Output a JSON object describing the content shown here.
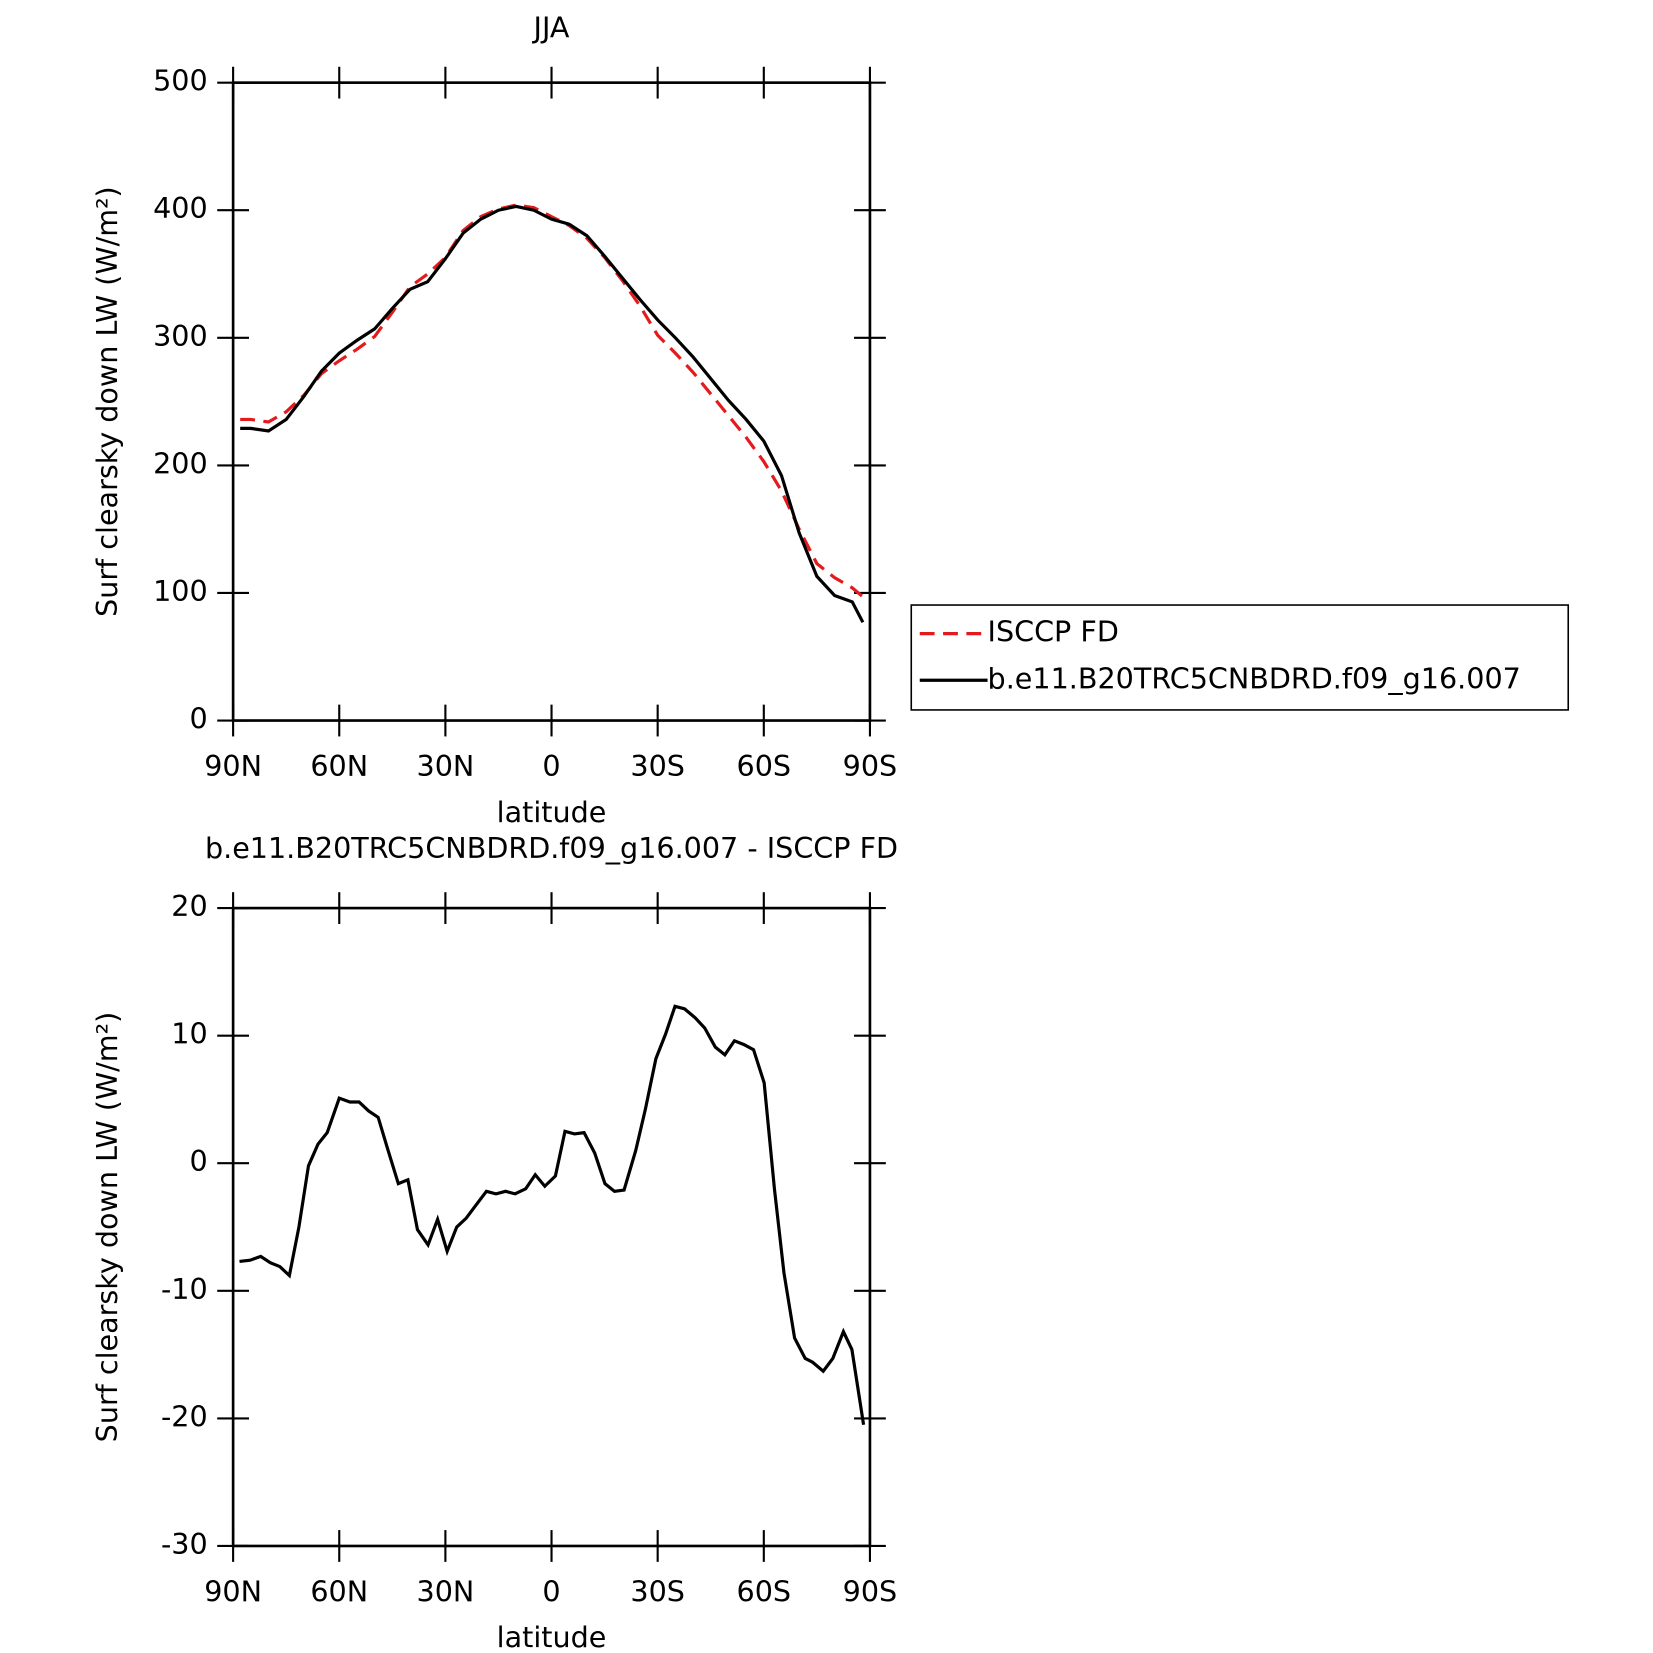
{
  "chart_data": [
    {
      "type": "line",
      "title": "JJA",
      "xlabel": "latitude",
      "ylabel": "Surf clearsky down LW (W/m²)",
      "xlim": [
        90,
        -90
      ],
      "xticks": [
        {
          "value": 90,
          "label": "90N"
        },
        {
          "value": 60,
          "label": "60N"
        },
        {
          "value": 30,
          "label": "30N"
        },
        0,
        {
          "value": -30,
          "label": "30S"
        },
        {
          "value": -60,
          "label": "60S"
        },
        {
          "value": -90,
          "label": "90S"
        }
      ],
      "ylim": [
        0,
        500
      ],
      "yticks": [
        0,
        100,
        200,
        300,
        400,
        500
      ],
      "legend": "right",
      "x": [
        88,
        85,
        80,
        75,
        70,
        65,
        60,
        55,
        50,
        45,
        40,
        35,
        30,
        25,
        20,
        15,
        10,
        5,
        0,
        -5,
        -10,
        -15,
        -20,
        -25,
        -30,
        -35,
        -40,
        -45,
        -50,
        -55,
        -60,
        -65,
        -70,
        -75,
        -80,
        -85,
        -88
      ],
      "series": [
        {
          "name": "ISCCP FD",
          "color": "#e41a1c",
          "dash": true,
          "values": [
            236,
            236,
            234,
            242,
            255,
            272,
            282,
            291,
            301,
            320,
            340,
            350,
            363,
            384,
            395,
            401,
            404,
            402,
            395,
            388,
            378,
            363,
            345,
            325,
            302,
            288,
            273,
            256,
            239,
            222,
            203,
            180,
            150,
            123,
            112,
            104,
            97
          ]
        },
        {
          "name": "b.e11.B20TRC5CNBDRD.f09_g16.007",
          "color": "#000000",
          "dash": false,
          "values": [
            229,
            229,
            227,
            236,
            254,
            274,
            288,
            298,
            307,
            323,
            338,
            344,
            362,
            382,
            393,
            400,
            403,
            400,
            393,
            389,
            380,
            364,
            347,
            330,
            314,
            300,
            285,
            268,
            251,
            236,
            219,
            192,
            147,
            113,
            98,
            93,
            77
          ]
        }
      ]
    },
    {
      "type": "line",
      "title": "b.e11.B20TRC5CNBDRD.f09_g16.007 - ISCCP FD",
      "xlabel": "latitude",
      "ylabel": "Surf clearsky down LW (W/m²)",
      "xlim": [
        90,
        -90
      ],
      "xticks": [
        {
          "value": 90,
          "label": "90N"
        },
        {
          "value": 60,
          "label": "60N"
        },
        {
          "value": 30,
          "label": "30N"
        },
        0,
        {
          "value": -30,
          "label": "30S"
        },
        {
          "value": -60,
          "label": "60S"
        },
        {
          "value": -90,
          "label": "90S"
        }
      ],
      "ylim": [
        -30,
        20
      ],
      "yticks": [
        -30,
        -20,
        -10,
        0,
        10,
        20
      ],
      "x": [
        88.2,
        85.2,
        82.2,
        79.5,
        76.8,
        74.1,
        71.4,
        68.7,
        66,
        63.4,
        60,
        57,
        54.4,
        51.7,
        49,
        46.3,
        43.3,
        40.6,
        37.9,
        34.9,
        32.2,
        29.5,
        26.8,
        24.1,
        21.4,
        18.4,
        15.7,
        13,
        10.3,
        7.3,
        4.6,
        1.9,
        -1.1,
        -3.8,
        -6.5,
        -9.2,
        -12.2,
        -15.1,
        -17.8,
        -20.5,
        -23.8,
        -26.5,
        -29.5,
        -32.2,
        -34.9,
        -37.6,
        -40.6,
        -43.3,
        -46.3,
        -49,
        -51.7,
        -54.4,
        -57.1,
        -60.1,
        -63,
        -65.7,
        -68.7,
        -71.7,
        -73.8,
        -76.8,
        -79.5,
        -82.5,
        -84.9,
        -88.2
      ],
      "series": [
        {
          "color": "#000000",
          "dash": false,
          "values": [
            -7.7,
            -7.6,
            -7.3,
            -7.8,
            -8.1,
            -8.8,
            -5,
            -0.2,
            1.5,
            2.4,
            5.1,
            4.8,
            4.8,
            4.1,
            3.6,
            1.1,
            -1.6,
            -1.3,
            -5.2,
            -6.4,
            -4.4,
            -6.9,
            -5,
            -4.3,
            -3.3,
            -2.2,
            -2.4,
            -2.2,
            -2.4,
            -2,
            -0.9,
            -1.8,
            -1,
            2.5,
            2.3,
            2.4,
            0.8,
            -1.6,
            -2.2,
            -2.1,
            1,
            4.2,
            8.2,
            10.1,
            12.3,
            12.1,
            11.4,
            10.6,
            9.1,
            8.5,
            9.6,
            9.3,
            8.9,
            6.3,
            -2,
            -8.6,
            -13.7,
            -15.3,
            -15.6,
            -16.3,
            -15.3,
            -13.2,
            -14.6,
            -20.5
          ]
        }
      ]
    }
  ]
}
